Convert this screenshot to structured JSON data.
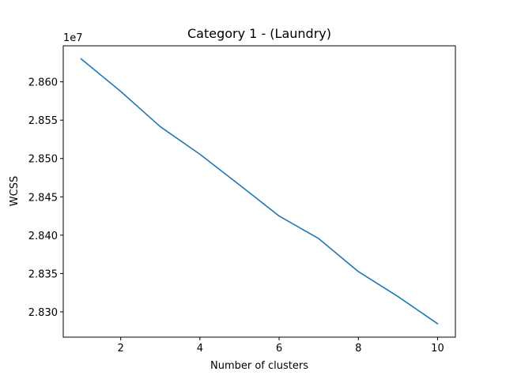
{
  "chart_data": {
    "type": "line",
    "title": "Category 1 - (Laundry)",
    "xlabel": "Number of clusters",
    "ylabel": "WCSS",
    "offset_label": "1e7",
    "x": [
      1,
      2,
      3,
      4,
      5,
      6,
      7,
      8,
      9,
      10
    ],
    "series": [
      {
        "values": [
          28630000,
          28587500,
          28541500,
          28505500,
          28465500,
          28425000,
          28395500,
          28352500,
          28320000,
          28284500
        ],
        "color": "#1f77b4"
      }
    ],
    "xlim": [
      0.55,
      10.45
    ],
    "ylim": [
      28267000,
      28647000
    ],
    "xticks": [
      2,
      4,
      6,
      8,
      10
    ],
    "xtick_labels": [
      "2",
      "4",
      "6",
      "8",
      "10"
    ],
    "yticks": [
      28300000,
      28350000,
      28400000,
      28450000,
      28500000,
      28550000,
      28600000
    ],
    "ytick_labels": [
      "2.830",
      "2.835",
      "2.840",
      "2.845",
      "2.850",
      "2.855",
      "2.860"
    ],
    "grid": false,
    "legend": false
  }
}
